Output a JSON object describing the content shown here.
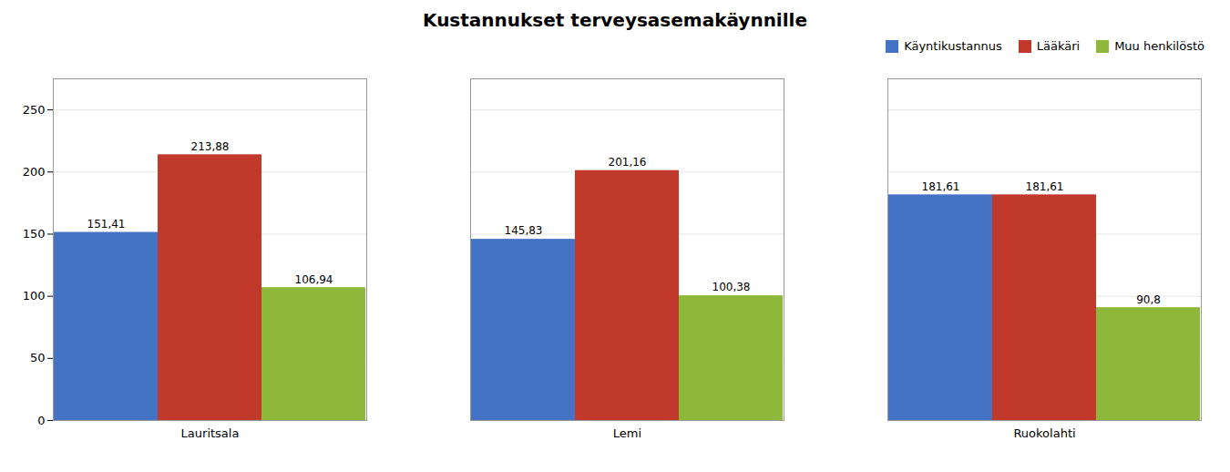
{
  "chart_data": {
    "type": "bar",
    "title": "Kustannukset terveysasemakäynnille",
    "categories": [
      "Lauritsala",
      "Lemi",
      "Ruokolahti"
    ],
    "series": [
      {
        "name": "Käyntikustannus",
        "color": "#4472C4",
        "values": [
          151.41,
          145.83,
          181.61
        ],
        "value_labels": [
          "151,41",
          "145,83",
          "181,61"
        ]
      },
      {
        "name": "Lääkäri",
        "color": "#C0392B",
        "values": [
          213.88,
          201.16,
          181.61
        ],
        "value_labels": [
          "213,88",
          "201,16",
          "181,61"
        ]
      },
      {
        "name": "Muu henkilöstö",
        "color": "#8DB83A",
        "values": [
          106.94,
          100.38,
          90.8
        ],
        "value_labels": [
          "106,94",
          "100,38",
          "90,8"
        ]
      }
    ],
    "ylim": [
      0,
      275
    ],
    "yticks": [
      0,
      50,
      100,
      150,
      200,
      250
    ],
    "grid": true,
    "legend": "upper right",
    "data_labels": true
  }
}
